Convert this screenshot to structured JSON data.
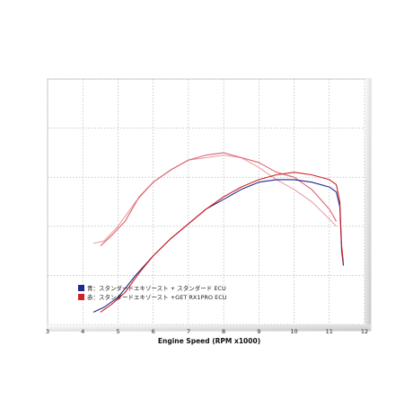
{
  "chart_data": {
    "type": "line",
    "title": "",
    "xlabel": "Engine Speed (RPM x1000)",
    "ylabel": "",
    "xlim": [
      3,
      12
    ],
    "ylim": [
      0,
      100
    ],
    "x_ticks": [
      "3",
      "4",
      "5",
      "6",
      "7",
      "8",
      "9",
      "10",
      "11",
      "12"
    ],
    "grid": true,
    "legend_position": "bottom-left",
    "legend": [
      {
        "label": "青：スタンダードエキゾースト + スタンダード ECU",
        "color": "#1f2a8a"
      },
      {
        "label": "赤：スタンダードエキゾースト +GET RX1PRO ECU",
        "color": "#d42026"
      }
    ],
    "series": [
      {
        "role": "torque-standard",
        "color": "#e8a0a8",
        "x": [
          4.3,
          4.6,
          5.0,
          5.5,
          6.0,
          6.5,
          7.0,
          7.5,
          8.0,
          8.5,
          9.0,
          9.5,
          10.0,
          10.5,
          11.0,
          11.2
        ],
        "y": [
          33,
          34,
          40,
          50,
          58,
          63,
          67,
          68,
          69,
          68,
          64,
          59,
          55,
          50,
          43,
          40
        ]
      },
      {
        "role": "torque-rx1pro",
        "color": "#dc6470",
        "x": [
          4.5,
          4.8,
          5.2,
          5.6,
          6.0,
          6.5,
          7.0,
          7.5,
          8.0,
          8.5,
          9.0,
          9.5,
          10.0,
          10.5,
          11.0,
          11.2
        ],
        "y": [
          32,
          36,
          42,
          52,
          58,
          63,
          67,
          69,
          70,
          68,
          66,
          62,
          60,
          55,
          47,
          42
        ]
      },
      {
        "role": "power-standard",
        "color": "#1f2a8a",
        "x": [
          4.3,
          4.6,
          5.0,
          5.5,
          6.0,
          6.5,
          7.0,
          7.5,
          8.0,
          8.5,
          9.0,
          9.5,
          10.0,
          10.5,
          11.0,
          11.2,
          11.3,
          11.35,
          11.4
        ],
        "y": [
          5,
          7,
          11,
          20,
          28,
          35,
          41,
          47,
          51,
          55,
          58,
          59,
          59,
          58,
          56,
          54,
          48,
          30,
          24
        ]
      },
      {
        "role": "power-rx1pro",
        "color": "#d42026",
        "x": [
          4.5,
          4.8,
          5.2,
          5.6,
          6.0,
          6.5,
          7.0,
          7.5,
          8.0,
          8.5,
          9.0,
          9.5,
          10.0,
          10.5,
          11.0,
          11.2,
          11.3,
          11.35,
          11.4
        ],
        "y": [
          5,
          8,
          13,
          21,
          28,
          35,
          41,
          47,
          52,
          56,
          59,
          61,
          62,
          61,
          59,
          57,
          50,
          32,
          25
        ]
      }
    ]
  }
}
